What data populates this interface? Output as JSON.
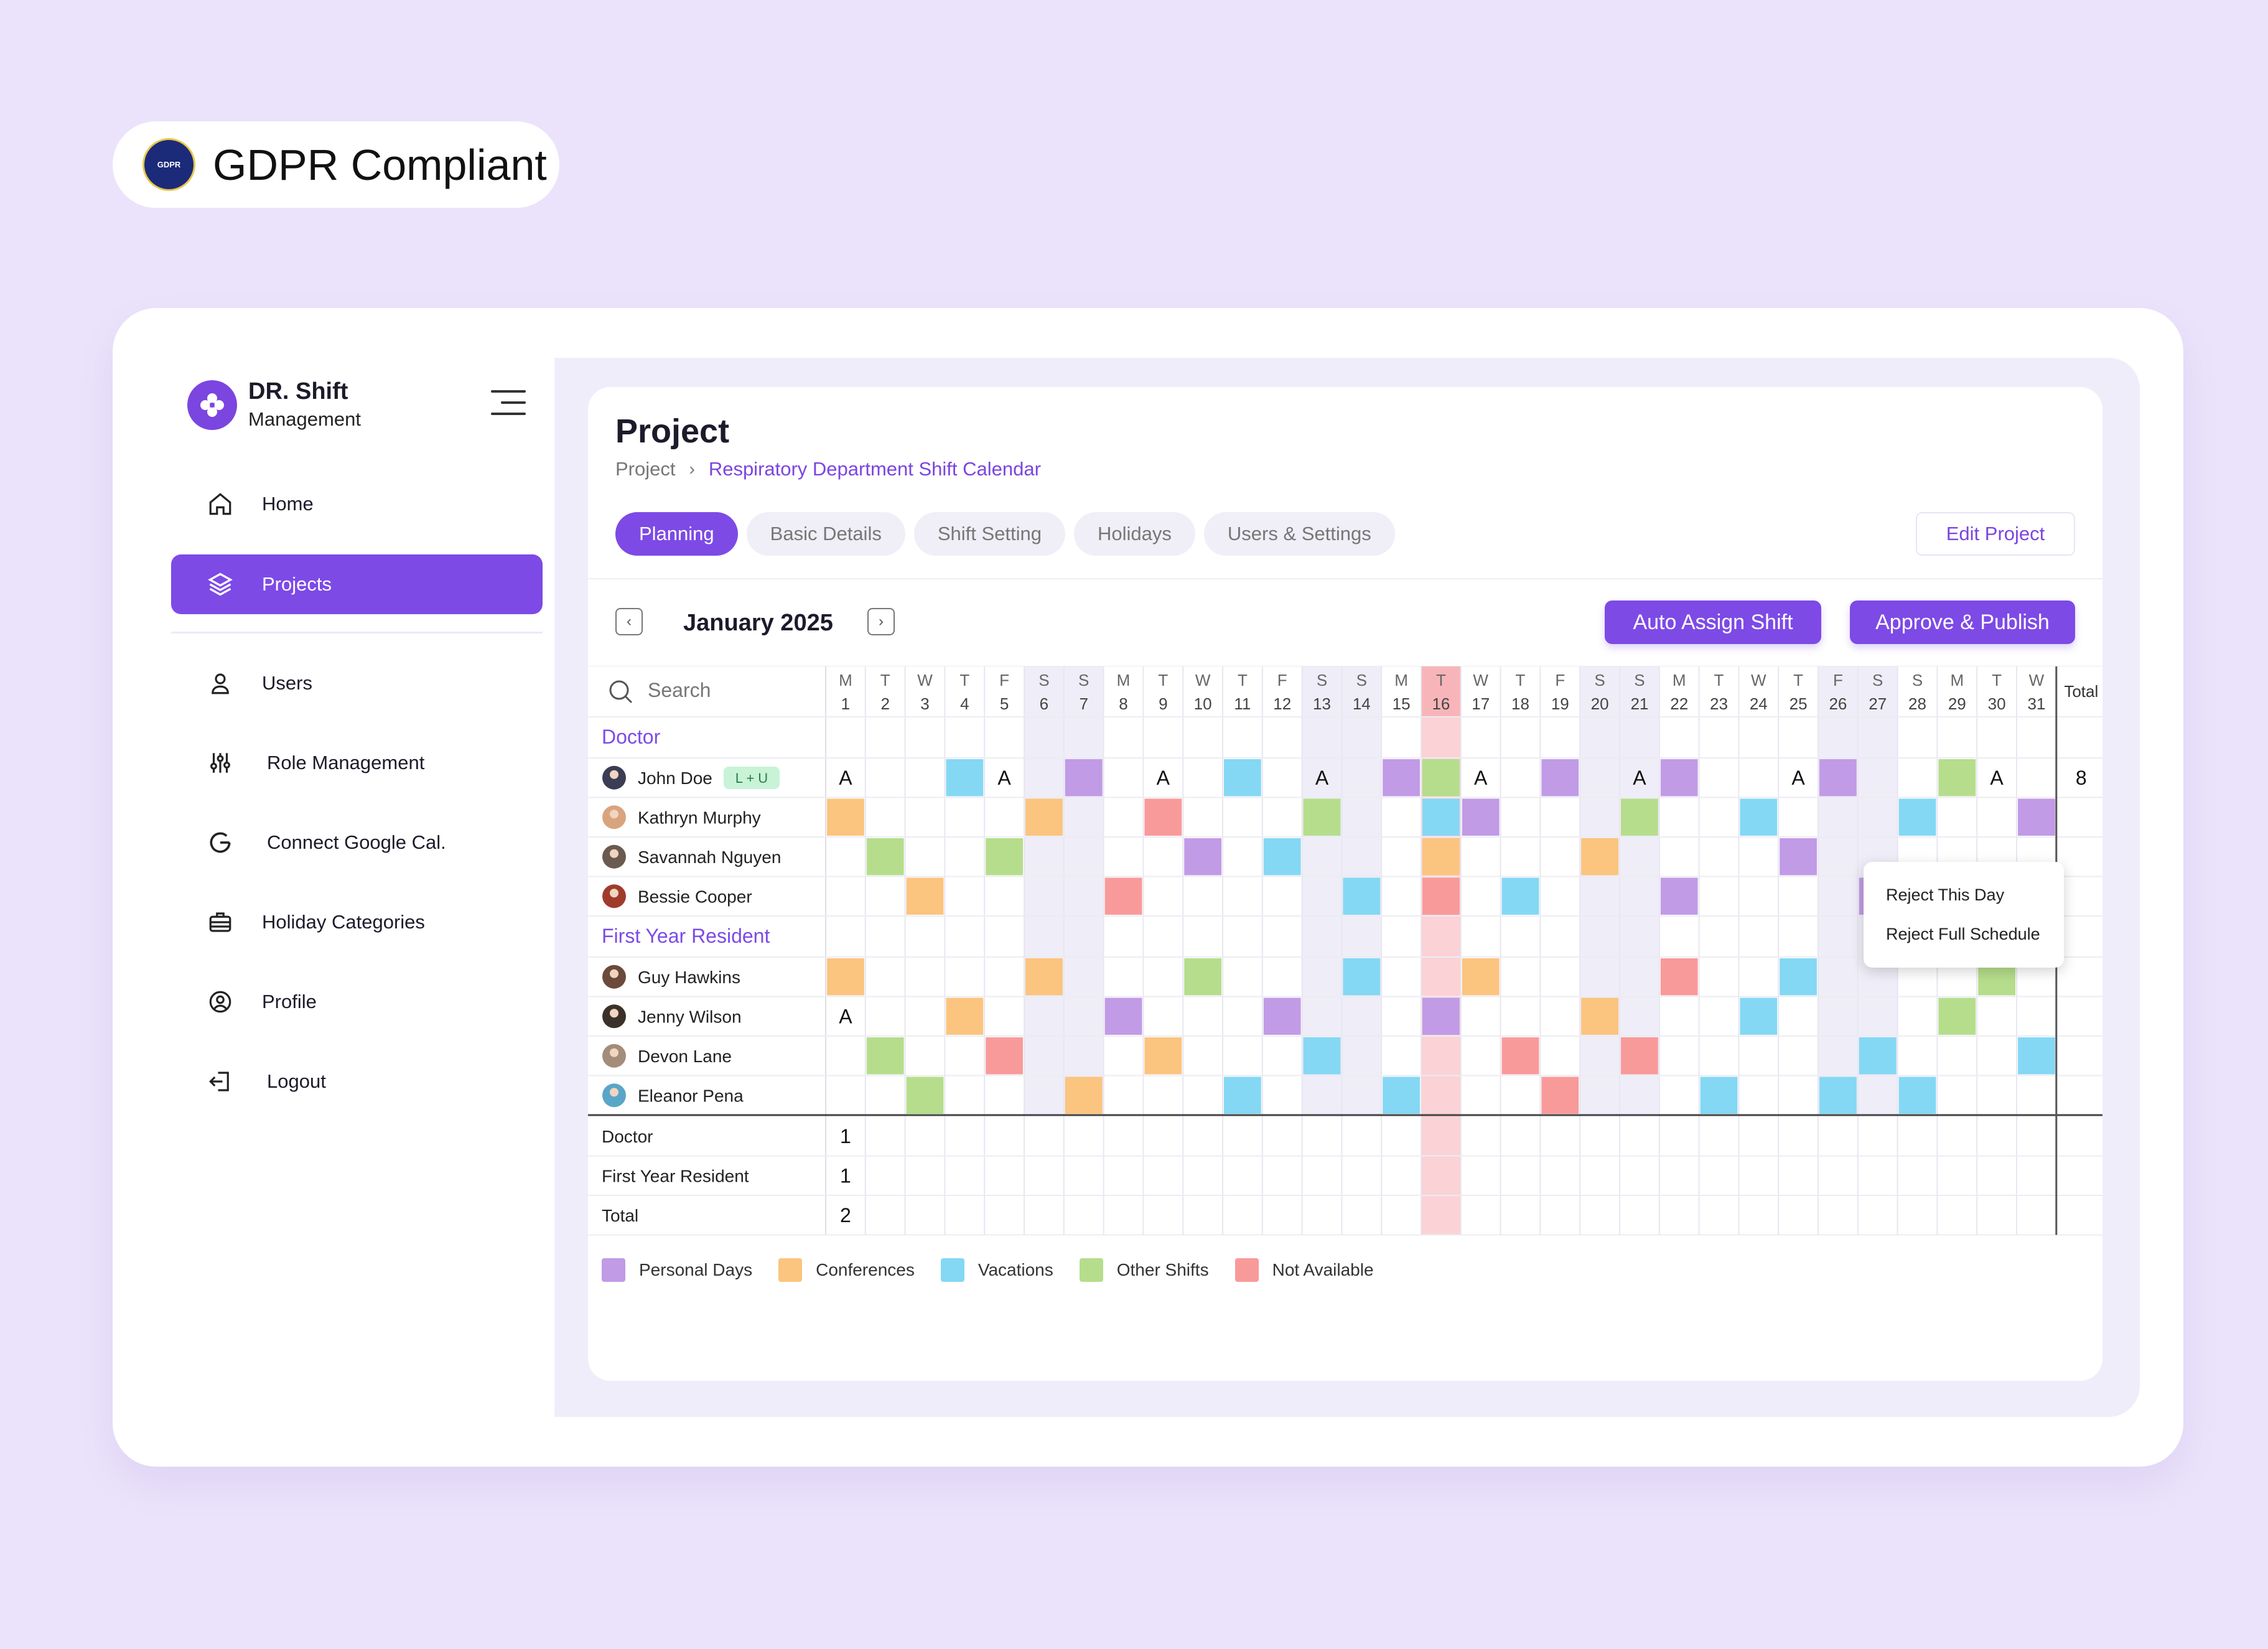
{
  "badge": {
    "text": "GDPR Compliant",
    "seal_text": "GDPR"
  },
  "app": {
    "title": "DR. Shift",
    "subtitle": "Management"
  },
  "sidebar": {
    "items": [
      {
        "label": "Home",
        "icon": "home-icon"
      },
      {
        "label": "Projects",
        "icon": "layers-icon",
        "active": true
      },
      {
        "label": "Users",
        "icon": "user-icon"
      },
      {
        "label": "Role  Management",
        "icon": "sliders-icon"
      },
      {
        "label": "Connect Google Cal.",
        "icon": "google-icon"
      },
      {
        "label": "Holiday Categories",
        "icon": "briefcase-icon"
      },
      {
        "label": "Profile",
        "icon": "profile-circle-icon"
      },
      {
        "label": "Logout",
        "icon": "logout-icon"
      }
    ]
  },
  "page": {
    "title": "Project",
    "breadcrumb": {
      "root": "Project",
      "current": "Respiratory Department Shift Calendar"
    },
    "tabs": [
      "Planning",
      "Basic Details",
      "Shift Setting",
      "Holidays",
      "Users & Settings"
    ],
    "active_tab": "Planning",
    "edit_button": "Edit Project"
  },
  "calendar": {
    "month_label": "January 2025",
    "auto_assign_label": "Auto Assign Shift",
    "approve_label": "Approve & Publish",
    "search_placeholder": "Search",
    "total_header": "Total",
    "weekday_letters": [
      "M",
      "T",
      "W",
      "T",
      "F",
      "S",
      "S",
      "M",
      "T",
      "W",
      "T",
      "F",
      "S",
      "S",
      "M",
      "T",
      "W",
      "T",
      "F",
      "S",
      "S",
      "M",
      "T",
      "W",
      "T",
      "F",
      "S",
      "S",
      "M",
      "T",
      "W",
      "T"
    ],
    "weekend_days": [
      6,
      7,
      13,
      14,
      20,
      21,
      26,
      27
    ],
    "today": 16,
    "colors": {
      "P": "#c19be6",
      "C": "#fbc47f",
      "V": "#84d8f4",
      "O": "#b6dd8c",
      "N": "#f99a9a",
      "accent": "#7d4ae6",
      "weekend": "#e1def0",
      "today_header": "#f8b5b9",
      "today_body": "#fbd2d5"
    },
    "groups": [
      {
        "name": "Doctor",
        "rows": [
          {
            "name": "John Doe",
            "tag": "L + U",
            "total": "8",
            "avatar": "#3c3c55",
            "cells": {
              "1": "A",
              "4": "V",
              "5": "A",
              "7": "P",
              "9": "A",
              "11": "V",
              "13": "A",
              "15": "P",
              "16": "O",
              "17": "A",
              "19": "P",
              "21": "A",
              "22": "P",
              "25": "A",
              "26": "P",
              "29": "O",
              "30": "A"
            }
          },
          {
            "name": "Kathryn Murphy",
            "avatar": "#d9a47d",
            "cells": {
              "1": "C",
              "6": "C",
              "9": "N",
              "13": "O",
              "16": "V",
              "17": "P",
              "21": "O",
              "24": "V",
              "28": "V",
              "31": "P"
            }
          },
          {
            "name": "Savannah Nguyen",
            "avatar": "#6b5a50",
            "cells": {
              "2": "O",
              "5": "O",
              "10": "P",
              "12": "V",
              "16": "C",
              "20": "C",
              "25": "P"
            }
          },
          {
            "name": "Bessie Cooper",
            "avatar": "#a03b2c",
            "cells": {
              "3": "C",
              "8": "N",
              "14": "V",
              "16": "N",
              "18": "V",
              "22": "P",
              "27": "P"
            }
          }
        ]
      },
      {
        "name": "First Year Resident",
        "rows": [
          {
            "name": "Guy Hawkins",
            "avatar": "#6b4a3a",
            "cells": {
              "1": "C",
              "6": "C",
              "10": "O",
              "14": "V",
              "17": "C",
              "22": "N",
              "25": "V",
              "30": "O"
            }
          },
          {
            "name": "Jenny Wilson",
            "avatar": "#3a3228",
            "cells": {
              "1": "A",
              "4": "C",
              "8": "P",
              "12": "P",
              "16": "P",
              "20": "C",
              "24": "V",
              "29": "O"
            }
          },
          {
            "name": "Devon Lane",
            "avatar": "#a48c7a",
            "cells": {
              "2": "O",
              "5": "N",
              "9": "C",
              "13": "V",
              "18": "N",
              "21": "N",
              "27": "V",
              "31": "V"
            }
          },
          {
            "name": "Eleanor Pena",
            "avatar": "#5aa6c8",
            "cells": {
              "3": "O",
              "7": "C",
              "11": "V",
              "15": "V",
              "19": "N",
              "23": "V",
              "26": "V",
              "28": "V"
            }
          }
        ]
      }
    ],
    "summary": [
      {
        "label": "Doctor",
        "value": "1"
      },
      {
        "label": "First Year Resident",
        "value": "1"
      },
      {
        "label": "Total",
        "value": "2"
      }
    ],
    "legend": [
      {
        "label": "Personal Days",
        "color": "#c19be6"
      },
      {
        "label": "Conferences",
        "color": "#fbc47f"
      },
      {
        "label": "Vacations",
        "color": "#84d8f4"
      },
      {
        "label": "Other Shifts",
        "color": "#b6dd8c"
      },
      {
        "label": "Not Available",
        "color": "#f99a9a"
      }
    ]
  },
  "context_menu": {
    "items": [
      "Reject This Day",
      "Reject Full Schedule"
    ]
  }
}
